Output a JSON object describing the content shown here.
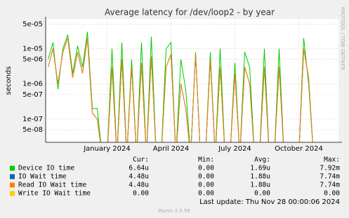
{
  "chart_data": {
    "type": "line",
    "title": "Average latency for /dev/loop2 - by year",
    "y_label": "seconds",
    "log_scale": true,
    "grid": true,
    "categories": [
      null,
      null,
      null,
      null,
      null,
      null,
      null,
      null,
      null,
      null,
      null,
      null,
      "January 2024",
      null,
      null,
      null,
      null,
      null,
      null,
      null,
      null,
      null,
      null,
      null,
      null,
      "April 2024",
      null,
      null,
      null,
      null,
      null,
      null,
      null,
      null,
      null,
      null,
      null,
      null,
      "July 2024",
      null,
      null,
      null,
      null,
      null,
      null,
      null,
      null,
      null,
      null,
      null,
      null,
      "October 2024",
      null,
      null,
      null,
      null,
      null,
      null,
      null
    ],
    "ylim": [
      2.2e-08,
      7e-05
    ],
    "yticks": [
      {
        "value": 5e-08,
        "label": "5e-08"
      },
      {
        "value": 1e-07,
        "label": "1e-07"
      },
      {
        "value": 5e-07,
        "label": "5e-07"
      },
      {
        "value": 1e-06,
        "label": "1e-06"
      },
      {
        "value": 5e-06,
        "label": "5e-06"
      },
      {
        "value": 1e-05,
        "label": "1e-05"
      },
      {
        "value": 5e-05,
        "label": "5e-05"
      }
    ],
    "series": [
      {
        "name": "Device IO time",
        "color": "#00cc00",
        "values": [
          5e-06,
          1.5e-05,
          7e-07,
          1e-05,
          2.5e-05,
          2e-06,
          1.2e-05,
          3e-06,
          3e-05,
          2e-07,
          2e-07,
          0,
          0,
          1e-05,
          0,
          1.5e-05,
          0,
          5e-06,
          0,
          1.5e-05,
          0,
          2.2e-05,
          0,
          0,
          1e-05,
          1.5e-05,
          0,
          5e-06,
          7e-07,
          0,
          8e-06,
          0,
          0,
          8e-06,
          0,
          1e-05,
          0,
          0,
          4e-06,
          0,
          8e-06,
          3e-06,
          0,
          0,
          1e-05,
          0,
          0,
          1e-05,
          0,
          0,
          0,
          0,
          2e-05,
          1e-06,
          0,
          0,
          0,
          0,
          0
        ]
      },
      {
        "name": "IO Wait time",
        "color": "#0066b3",
        "values": [
          3e-06,
          1e-05,
          1e-06,
          8e-06,
          2e-05,
          1.5e-06,
          8e-06,
          2e-06,
          2e-05,
          1.5e-07,
          1e-07,
          0,
          0,
          3e-06,
          0,
          5e-06,
          0,
          3e-06,
          0,
          4e-06,
          0,
          6e-06,
          0,
          0,
          3e-06,
          7e-06,
          0,
          1e-06,
          2e-07,
          0,
          7e-06,
          0,
          0,
          5e-06,
          0,
          3e-06,
          0,
          0,
          2e-06,
          0,
          3e-06,
          1e-06,
          0,
          0,
          3e-06,
          0,
          0,
          3e-06,
          0,
          0,
          0,
          0,
          1e-05,
          1.5e-06,
          0,
          0,
          0,
          0,
          0
        ]
      },
      {
        "name": "Read IO Wait time",
        "color": "#ff8000",
        "values": [
          3e-06,
          1e-05,
          1e-06,
          8e-06,
          2e-05,
          1.5e-06,
          8e-06,
          2e-06,
          2e-05,
          1.5e-07,
          1e-07,
          0,
          0,
          3e-06,
          0,
          5e-06,
          0,
          3e-06,
          0,
          4e-06,
          0,
          6e-06,
          0,
          0,
          3e-06,
          7e-06,
          0,
          1e-06,
          2e-07,
          0,
          7e-06,
          0,
          0,
          5e-06,
          0,
          3e-06,
          0,
          0,
          2e-06,
          0,
          3e-06,
          1e-06,
          0,
          0,
          3e-06,
          0,
          0,
          3e-06,
          0,
          0,
          0,
          0,
          1e-05,
          1.5e-06,
          0,
          0,
          0,
          0,
          0
        ]
      },
      {
        "name": "Write IO Wait time",
        "color": "#ffcc00",
        "values": [
          0,
          0,
          0,
          0,
          0,
          0,
          0,
          0,
          0,
          0,
          0,
          0,
          0,
          0,
          0,
          0,
          0,
          0,
          0,
          0,
          0,
          0,
          0,
          0,
          0,
          0,
          0,
          0,
          0,
          0,
          0,
          0,
          0,
          0,
          0,
          0,
          0,
          0,
          0,
          0,
          0,
          0,
          0,
          0,
          0,
          0,
          0,
          0,
          0,
          0,
          0,
          0,
          0,
          0,
          0,
          0,
          0,
          0,
          0
        ]
      }
    ],
    "legend_table": {
      "headers": [
        "Cur:",
        "Min:",
        "Avg:",
        "Max:"
      ],
      "rows": [
        [
          "6.64u",
          "0.00",
          "1.69u",
          "7.92m"
        ],
        [
          "4.48u",
          "0.00",
          "1.88u",
          "7.74m"
        ],
        [
          "4.48u",
          "0.00",
          "1.88u",
          "7.74m"
        ],
        [
          "0.00",
          "0.00",
          "0.00",
          "0.00"
        ]
      ]
    },
    "last_update": "Last update: Thu Nov 28 00:00:06 2024",
    "footer": "Munin 2.0.56",
    "side_text": "RRDTOOL / TOBI OETIKER"
  }
}
